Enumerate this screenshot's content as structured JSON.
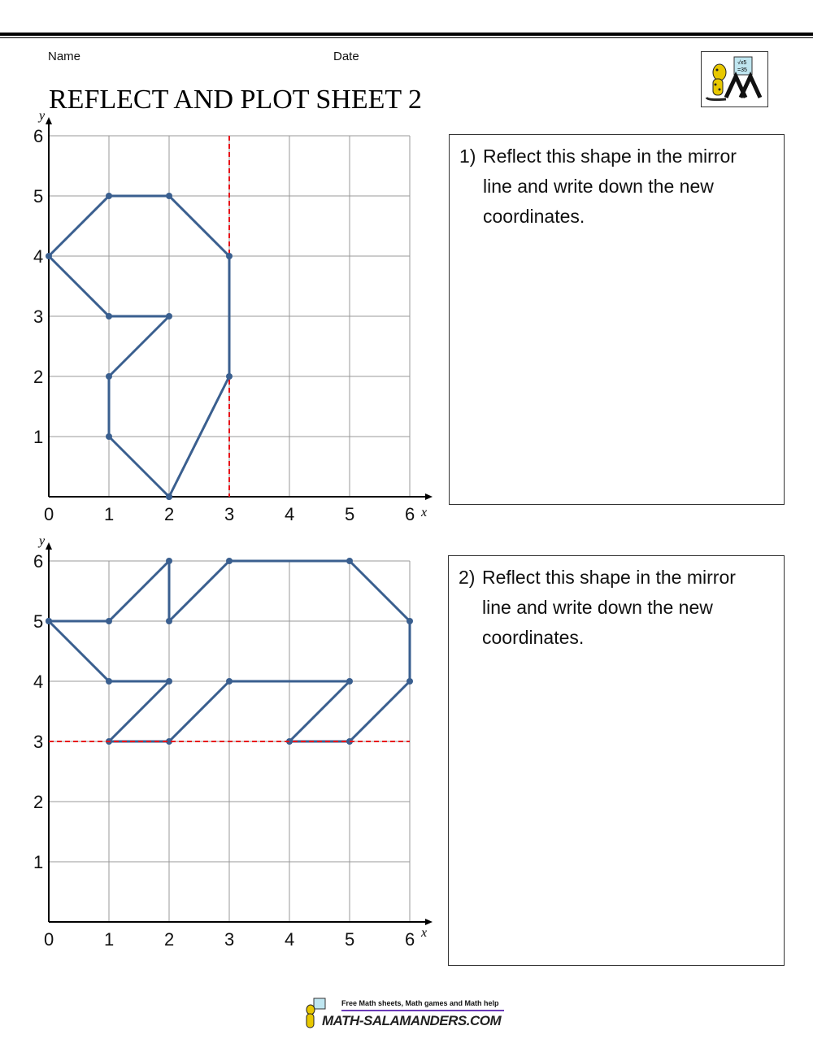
{
  "header": {
    "name_label": "Name",
    "date_label": "Date",
    "title": "REFLECT AND PLOT SHEET 2",
    "logo_icon": "salamander-math-logo"
  },
  "colors": {
    "shape": "#3a5f8f",
    "mirror": "#e8141a",
    "grid": "#999999"
  },
  "questions": [
    {
      "number": "1)",
      "text": "Reflect this shape in the mirror line and write down the new coordinates."
    },
    {
      "number": "2)",
      "text": "Reflect this shape in the mirror line and write down the new coordinates."
    }
  ],
  "chart_data": [
    {
      "type": "line",
      "xlabel": "x",
      "ylabel": "y",
      "xlim": [
        0,
        6
      ],
      "ylim": [
        0,
        6
      ],
      "grid": true,
      "x_ticks": [
        "0",
        "1",
        "2",
        "3",
        "4",
        "5",
        "6"
      ],
      "y_ticks": [
        "1",
        "2",
        "3",
        "4",
        "5",
        "6"
      ],
      "mirror_line": {
        "orientation": "vertical",
        "x": 3
      },
      "shape": [
        [
          2,
          0
        ],
        [
          1,
          1
        ],
        [
          1,
          2
        ],
        [
          2,
          3
        ],
        [
          1,
          3
        ],
        [
          0,
          4
        ],
        [
          1,
          5
        ],
        [
          2,
          5
        ],
        [
          3,
          4
        ],
        [
          3,
          2
        ],
        [
          2,
          0
        ]
      ]
    },
    {
      "type": "line",
      "xlabel": "x",
      "ylabel": "y",
      "xlim": [
        0,
        6
      ],
      "ylim": [
        0,
        6
      ],
      "grid": true,
      "x_ticks": [
        "0",
        "1",
        "2",
        "3",
        "4",
        "5",
        "6"
      ],
      "y_ticks": [
        "1",
        "2",
        "3",
        "4",
        "5",
        "6"
      ],
      "mirror_line": {
        "orientation": "horizontal",
        "y": 3
      },
      "shape": [
        [
          0,
          5
        ],
        [
          1,
          5
        ],
        [
          2,
          6
        ],
        [
          2,
          5
        ],
        [
          3,
          6
        ],
        [
          5,
          6
        ],
        [
          6,
          5
        ],
        [
          6,
          4
        ],
        [
          5,
          3
        ],
        [
          4,
          3
        ],
        [
          5,
          4
        ],
        [
          3,
          4
        ],
        [
          2,
          3
        ],
        [
          1,
          3
        ],
        [
          2,
          4
        ],
        [
          1,
          4
        ],
        [
          0,
          5
        ]
      ]
    }
  ],
  "footer": {
    "tagline": "Free Math sheets, Math games and Math help",
    "site": "MATH-SALAMANDERS.COM"
  }
}
